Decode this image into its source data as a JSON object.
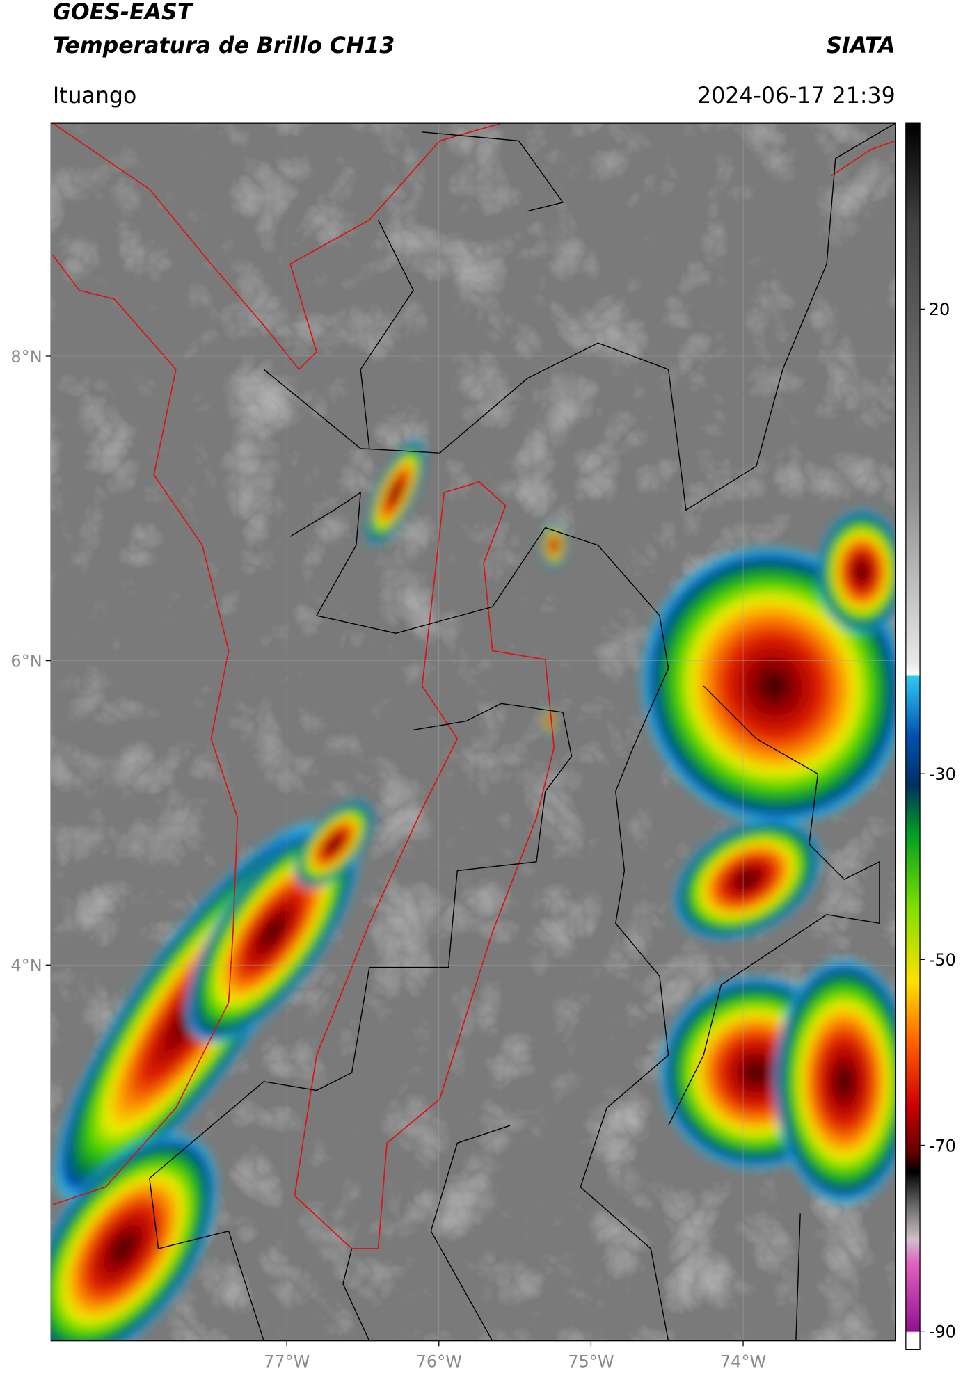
{
  "header": {
    "title": "GOES-EAST",
    "subtitle": "Temperatura de Brillo CH13",
    "organization": "SIATA",
    "location": "Ituango",
    "datetime": "2024-06-17 21:39"
  },
  "map": {
    "lon_range": [
      -78.55,
      -73.0
    ],
    "lat_range": [
      1.53,
      9.53
    ],
    "lon_ticks": [
      {
        "value": -77,
        "label": "77°W"
      },
      {
        "value": -76,
        "label": "76°W"
      },
      {
        "value": -75,
        "label": "75°W"
      },
      {
        "value": -74,
        "label": "74°W"
      }
    ],
    "lat_ticks": [
      {
        "value": 8,
        "label": "8°N"
      },
      {
        "value": 6,
        "label": "6°N"
      },
      {
        "value": 4,
        "label": "4°N"
      }
    ]
  },
  "colorbar": {
    "range": [
      -92,
      40
    ],
    "ticks": [
      20,
      -30,
      -50,
      -70,
      -90
    ]
  }
}
